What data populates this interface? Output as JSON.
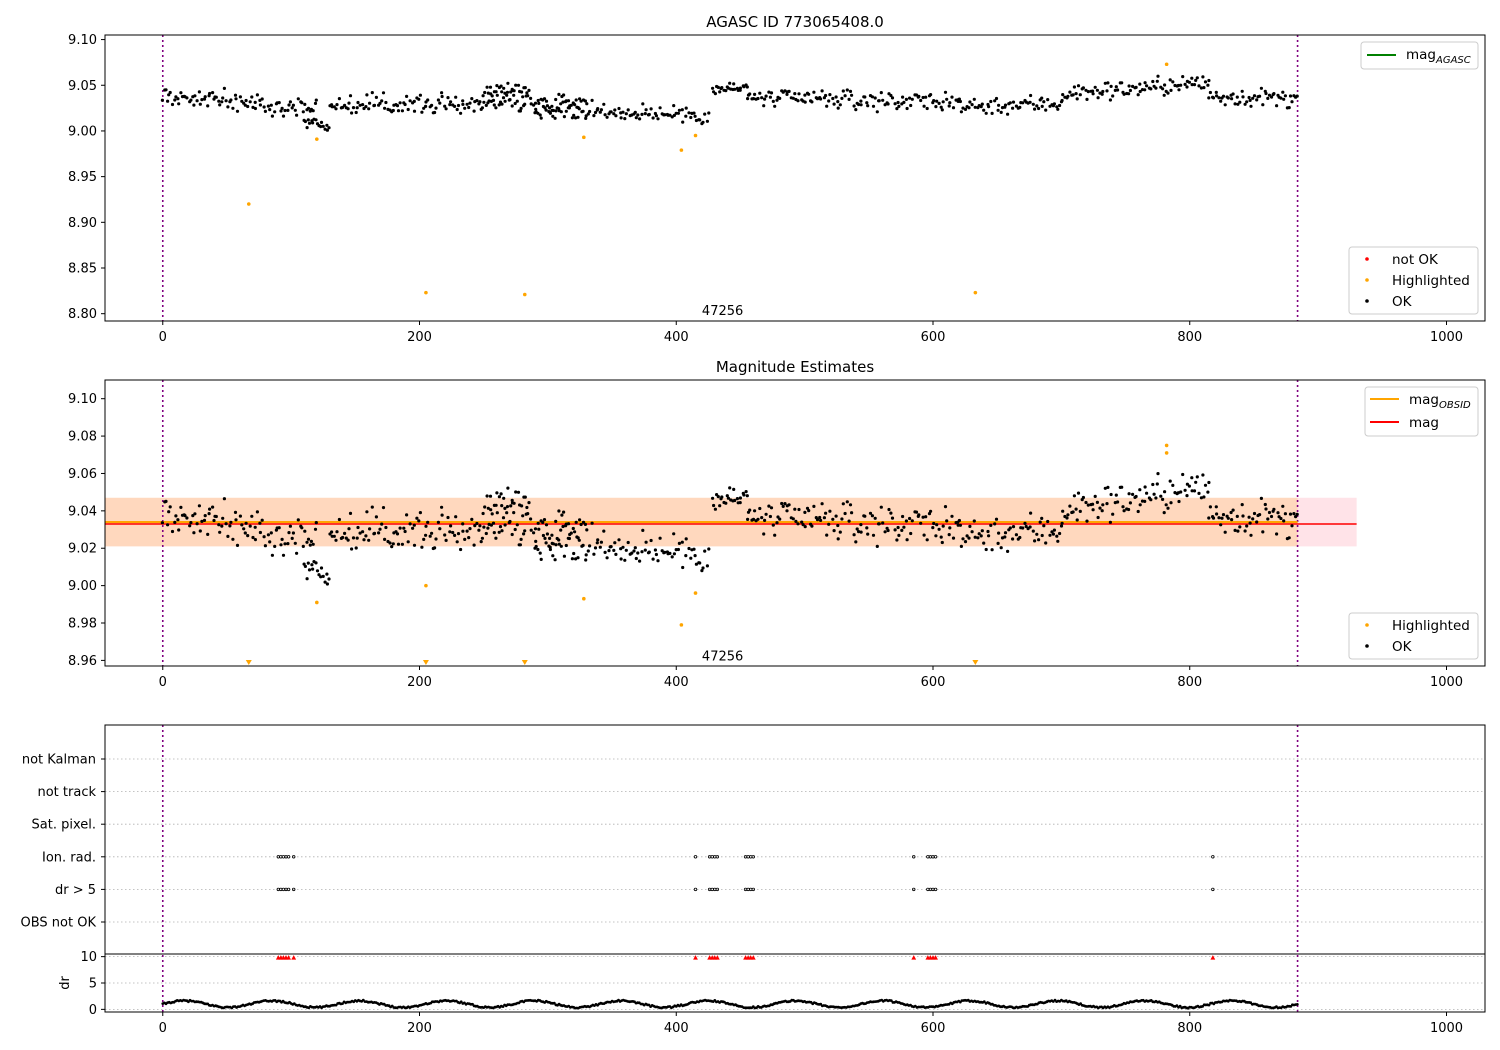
{
  "chart_data": [
    {
      "type": "scatter",
      "title": "AGASC ID 773065408.0",
      "xlim": [
        -45,
        1030
      ],
      "ylim": [
        8.792,
        9.105
      ],
      "x_ticks": [
        0,
        200,
        400,
        600,
        800,
        1000
      ],
      "y_ticks": [
        9.1,
        9.05,
        9.0,
        8.95,
        8.9,
        8.85,
        8.8
      ],
      "x_tick_labels": [
        "0",
        "200",
        "400",
        "600",
        "800",
        "1000"
      ],
      "y_tick_labels": [
        "9.10",
        "9.05",
        "9.00",
        "8.95",
        "8.90",
        "8.85",
        "8.80"
      ],
      "vlines": [
        0,
        884
      ],
      "vline_color": "#800080",
      "annotation": {
        "text": "47256",
        "x": 420,
        "y": 8.803
      },
      "legend_lines": [
        {
          "label": "mag",
          "sub": "AGASC",
          "color": "#008000"
        }
      ],
      "legend_points": [
        {
          "label": "not OK",
          "color": "#ff0000"
        },
        {
          "label": "Highlighted",
          "color": "#ffa500"
        },
        {
          "label": "OK",
          "color": "#000000"
        }
      ],
      "ok_series": {
        "color": "#000000",
        "segments": [
          {
            "x0": 0,
            "x1": 120,
            "n": 95,
            "base": 9.038,
            "end": 9.025,
            "noise": 0.009
          },
          {
            "x0": 110,
            "x1": 130,
            "n": 18,
            "base": 9.012,
            "end": 9.004,
            "noise": 0.005
          },
          {
            "x0": 130,
            "x1": 330,
            "n": 160,
            "base": 9.028,
            "end": 9.032,
            "noise": 0.009
          },
          {
            "x0": 250,
            "x1": 285,
            "n": 30,
            "base": 9.045,
            "end": 9.045,
            "noise": 0.006
          },
          {
            "x0": 290,
            "x1": 425,
            "n": 105,
            "base": 9.022,
            "end": 9.018,
            "noise": 0.009
          },
          {
            "x0": 428,
            "x1": 455,
            "n": 25,
            "base": 9.045,
            "end": 9.048,
            "noise": 0.007
          },
          {
            "x0": 455,
            "x1": 620,
            "n": 130,
            "base": 9.036,
            "end": 9.032,
            "noise": 0.009
          },
          {
            "x0": 620,
            "x1": 700,
            "n": 62,
            "base": 9.027,
            "end": 9.03,
            "noise": 0.009
          },
          {
            "x0": 700,
            "x1": 815,
            "n": 92,
            "base": 9.04,
            "end": 9.053,
            "noise": 0.009
          },
          {
            "x0": 815,
            "x1": 884,
            "n": 55,
            "base": 9.038,
            "end": 9.035,
            "noise": 0.009
          }
        ]
      },
      "highlighted_points": {
        "color": "#ffa500",
        "x": [
          67,
          120,
          205,
          282,
          328,
          404,
          415,
          633,
          782
        ],
        "y": [
          8.92,
          8.991,
          8.823,
          8.821,
          8.993,
          8.979,
          8.995,
          8.823,
          9.073
        ]
      }
    },
    {
      "type": "scatter",
      "title": "Magnitude Estimates",
      "xlim": [
        -45,
        1030
      ],
      "ylim": [
        8.957,
        9.11
      ],
      "x_ticks": [
        0,
        200,
        400,
        600,
        800,
        1000
      ],
      "y_ticks": [
        9.1,
        9.08,
        9.06,
        9.04,
        9.02,
        9.0,
        8.98,
        8.96
      ],
      "x_tick_labels": [
        "0",
        "200",
        "400",
        "600",
        "800",
        "1000"
      ],
      "y_tick_labels": [
        "9.10",
        "9.08",
        "9.06",
        "9.04",
        "9.02",
        "9.00",
        "8.98",
        "8.96"
      ],
      "vlines": [
        0,
        884
      ],
      "annotation": {
        "text": "47256",
        "x": 420,
        "y": 8.962
      },
      "mag_line": {
        "y": 9.0335,
        "color": "#ff0000",
        "x0": -45,
        "x1": 930
      },
      "mag_band": {
        "y0": 9.021,
        "y1": 9.047,
        "x0": -45,
        "x1": 930,
        "color": "#ffc0cb"
      },
      "obsid_line": {
        "y": 9.034,
        "color": "#ffa500",
        "x0": -45,
        "x1": 884
      },
      "obsid_band": {
        "y0": 9.021,
        "y1": 9.047,
        "x0": -45,
        "x1": 884,
        "color": "#ffa500"
      },
      "legend_lines": [
        {
          "label": "mag",
          "sub": "OBSID",
          "color": "#ffa500"
        },
        {
          "label": "mag",
          "sub": "",
          "color": "#ff0000"
        }
      ],
      "legend_points": [
        {
          "label": "Highlighted",
          "color": "#ffa500"
        },
        {
          "label": "OK",
          "color": "#000000"
        }
      ],
      "highlighted_points": {
        "color": "#ffa500",
        "x": [
          120,
          205,
          328,
          404,
          415,
          782,
          782
        ],
        "y": [
          8.991,
          9.0,
          8.993,
          8.979,
          8.996,
          9.075,
          9.071
        ]
      },
      "clipped_markers": {
        "color": "#ffa500",
        "x": [
          67,
          205,
          282,
          633
        ]
      }
    },
    {
      "type": "scatter",
      "title": "",
      "xlim": [
        -45,
        1030
      ],
      "x_ticks": [
        0,
        200,
        400,
        600,
        800,
        1000
      ],
      "x_tick_labels": [
        "0",
        "200",
        "400",
        "600",
        "800",
        "1000"
      ],
      "vlines": [
        0,
        884
      ],
      "flag_rows": [
        "not Kalman",
        "not track",
        "Sat. pixel.",
        "Ion. rad.",
        "dr > 5",
        "OBS not OK"
      ],
      "flag_events": {
        "Ion. rad.": [
          90,
          92,
          94,
          96,
          98,
          102,
          415,
          426,
          428,
          430,
          432,
          454,
          456,
          458,
          460,
          585,
          596,
          598,
          600,
          602,
          818
        ],
        "dr > 5": [
          90,
          92,
          94,
          96,
          98,
          102,
          415,
          426,
          428,
          430,
          432,
          454,
          456,
          458,
          460,
          585,
          596,
          598,
          600,
          602,
          818
        ]
      },
      "dr_panel": {
        "ylabel": "dr",
        "ylim": [
          -0.5,
          10.5
        ],
        "y_ticks": [
          0,
          5,
          10
        ],
        "y_tick_labels": [
          "0",
          "5",
          "10"
        ],
        "clipped_color": "#ff0000",
        "clipped_x": [
          90,
          92,
          94,
          96,
          98,
          102,
          415,
          426,
          428,
          430,
          432,
          454,
          456,
          458,
          460,
          585,
          596,
          598,
          600,
          602,
          818
        ],
        "dr_base": 1.0,
        "dr_amp": 0.7,
        "dr_period": 68
      }
    }
  ]
}
